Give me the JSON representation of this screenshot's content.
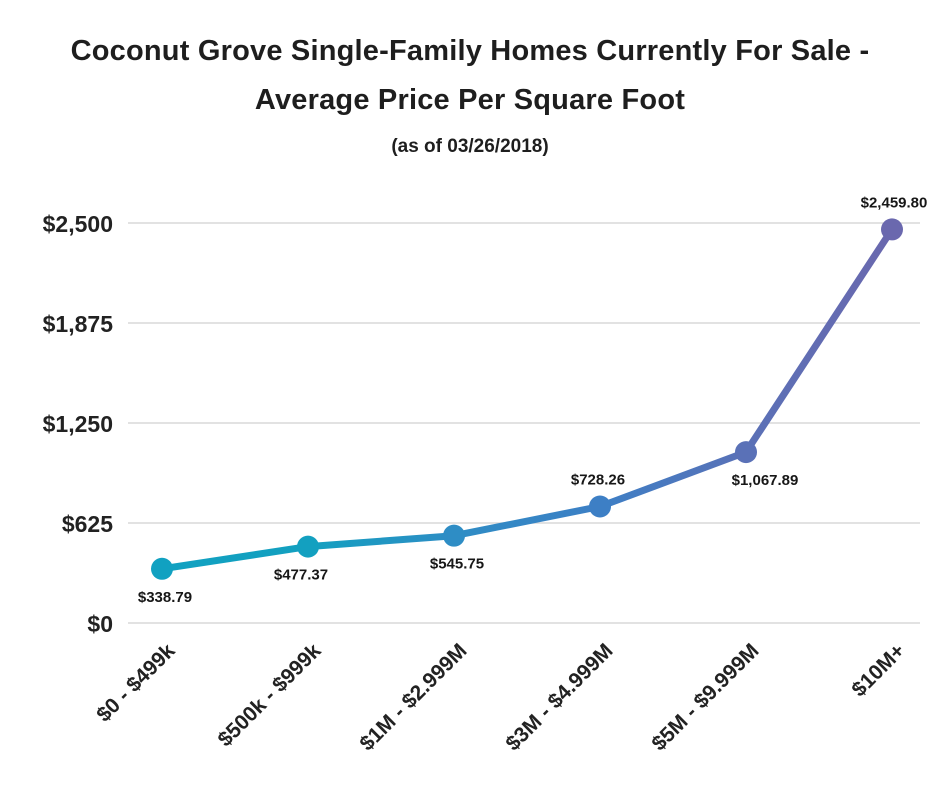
{
  "header": {
    "title_line1": "Coconut Grove Single-Family Homes Currently For Sale -",
    "title_line2": "Average Price Per Square Foot",
    "subtitle": "(as of 03/26/2018)"
  },
  "chart_data": {
    "type": "line",
    "title": "Coconut Grove Single-Family Homes Currently For Sale - Average Price Per Square Foot",
    "subtitle": "(as of 03/26/2018)",
    "categories": [
      "$0 - $499k",
      "$500k - $999k",
      "$1M - $2.999M",
      "$3M - $4.999M",
      "$5M - $9.999M",
      "$10M+"
    ],
    "values": [
      338.79,
      477.37,
      545.75,
      728.26,
      1067.89,
      2459.8
    ],
    "point_labels": [
      "$338.79",
      "$477.37",
      "$545.75",
      "$728.26",
      "$1,067.89",
      "$2,459.80"
    ],
    "xlabel": "",
    "ylabel": "",
    "ylim": [
      0,
      2500
    ],
    "yticks": [
      0,
      625,
      1250,
      1875,
      2500
    ],
    "ytick_labels": [
      "$0",
      "$625",
      "$1,250",
      "$1,875",
      "$2,500"
    ],
    "grid": "horizontal-only",
    "legend": "none",
    "marker_style": "filled-circle",
    "line_style": "gradient-left-to-right",
    "colors": {
      "point_colors": [
        "#11a1c1",
        "#13a0c0",
        "#2e8dc5",
        "#3d7fc5",
        "#5a71b7",
        "#6a68ae"
      ],
      "gradient_start": "#11a1c1",
      "gradient_end": "#6a68ae",
      "gridline": "#d8d8d8",
      "text": "#1e1e1e"
    }
  }
}
